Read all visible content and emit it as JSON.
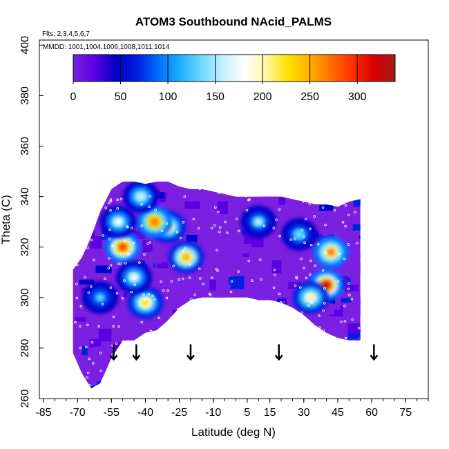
{
  "chart_data": {
    "type": "heatmap",
    "title": "ATOM3 Southbound NAcid_PALMS",
    "flights_note": "Flts: 2,3,4,5,6,7",
    "mmdd_note": "MMDD: 1001,1004,1006,1008,1011,1014",
    "xlabel": "Latitude (deg N)",
    "ylabel": "Theta (C)",
    "xlim": [
      -85,
      85
    ],
    "ylim": [
      260,
      402
    ],
    "x_ticks": [
      -85,
      -70,
      -55,
      -40,
      -25,
      -10,
      5,
      15,
      30,
      45,
      60,
      75
    ],
    "y_ticks": [
      260,
      280,
      300,
      320,
      340,
      360,
      380,
      400
    ],
    "colorbar": {
      "range": [
        0,
        340
      ],
      "ticks": [
        0,
        50,
        100,
        150,
        200,
        250,
        300
      ],
      "colors": [
        "#7b1fe0",
        "#5a00e0",
        "#0000c8",
        "#0020e0",
        "#0070ff",
        "#20b0ff",
        "#70d8ff",
        "#c8f0ff",
        "#ffffff",
        "#fff8a0",
        "#ffe000",
        "#ffb000",
        "#ff7000",
        "#ff3000",
        "#d80000",
        "#a01a1a"
      ]
    },
    "data_envelope": {
      "lat": [
        -72,
        -68,
        -64,
        -60,
        -55,
        -50,
        -45,
        -40,
        -35,
        -30,
        -25,
        -20,
        -15,
        -10,
        -5,
        0,
        5,
        10,
        15,
        20,
        25,
        30,
        35,
        40,
        45,
        50,
        55
      ],
      "theta_top": [
        311,
        316,
        324,
        334,
        343,
        346,
        346,
        345,
        346,
        346,
        344,
        343,
        343,
        342,
        341,
        340,
        340,
        340,
        340,
        340,
        339,
        338,
        337,
        337,
        336,
        338,
        339
      ],
      "theta_bottom": [
        278,
        270,
        264,
        266,
        276,
        283,
        283,
        286,
        287,
        291,
        296,
        299,
        300,
        300,
        300,
        300,
        300,
        299,
        299,
        298,
        296,
        293,
        289,
        286,
        284,
        283,
        283
      ]
    },
    "hotspots": [
      {
        "lat": 40,
        "theta": 305,
        "value": 300
      },
      {
        "lat": 42,
        "theta": 318,
        "value": 260
      },
      {
        "lat": -30,
        "theta": 328,
        "value": 220
      },
      {
        "lat": -36,
        "theta": 330,
        "value": 270
      },
      {
        "lat": -50,
        "theta": 320,
        "value": 280
      },
      {
        "lat": -22,
        "theta": 316,
        "value": 240
      },
      {
        "lat": -40,
        "theta": 298,
        "value": 220
      },
      {
        "lat": 33,
        "theta": 300,
        "value": 200
      },
      {
        "lat": -45,
        "theta": 308,
        "value": 170
      },
      {
        "lat": 10,
        "theta": 330,
        "value": 150
      },
      {
        "lat": 28,
        "theta": 325,
        "value": 140
      },
      {
        "lat": -60,
        "theta": 300,
        "value": 130
      },
      {
        "lat": -42,
        "theta": 340,
        "value": 160
      },
      {
        "lat": -52,
        "theta": 330,
        "value": 180
      }
    ],
    "arrows_lat": [
      -54,
      -44,
      -20,
      19,
      61
    ]
  }
}
